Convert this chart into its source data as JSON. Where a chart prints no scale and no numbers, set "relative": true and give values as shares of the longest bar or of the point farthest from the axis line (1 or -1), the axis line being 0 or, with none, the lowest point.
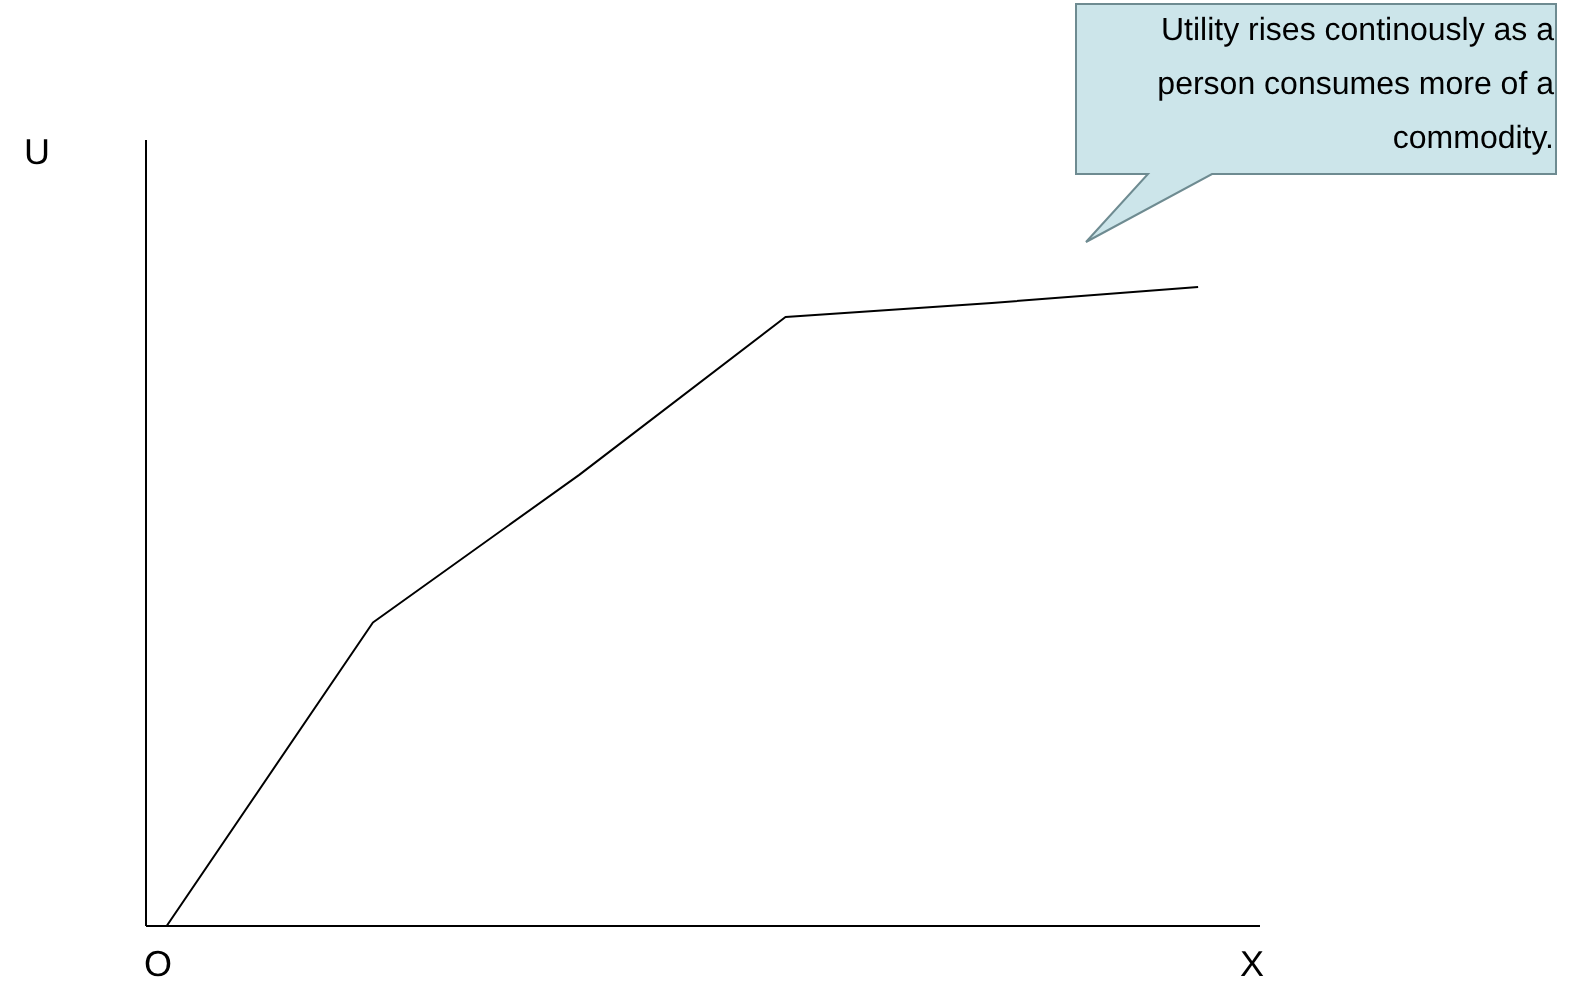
{
  "chart_data": {
    "type": "line",
    "relative": true,
    "ylabel": "U",
    "xlabel": "X",
    "categories": [
      null,
      null,
      null,
      null,
      null,
      null
    ],
    "series": [
      {
        "color": "#000000",
        "values": [
          0,
          0.475,
          0.706,
          0.953,
          0.975,
          1
        ]
      }
    ],
    "marker": "none",
    "grid": false,
    "legend": false,
    "annotations": [
      "O",
      "Utility rises continously as a person consumes more of a commodity."
    ]
  }
}
